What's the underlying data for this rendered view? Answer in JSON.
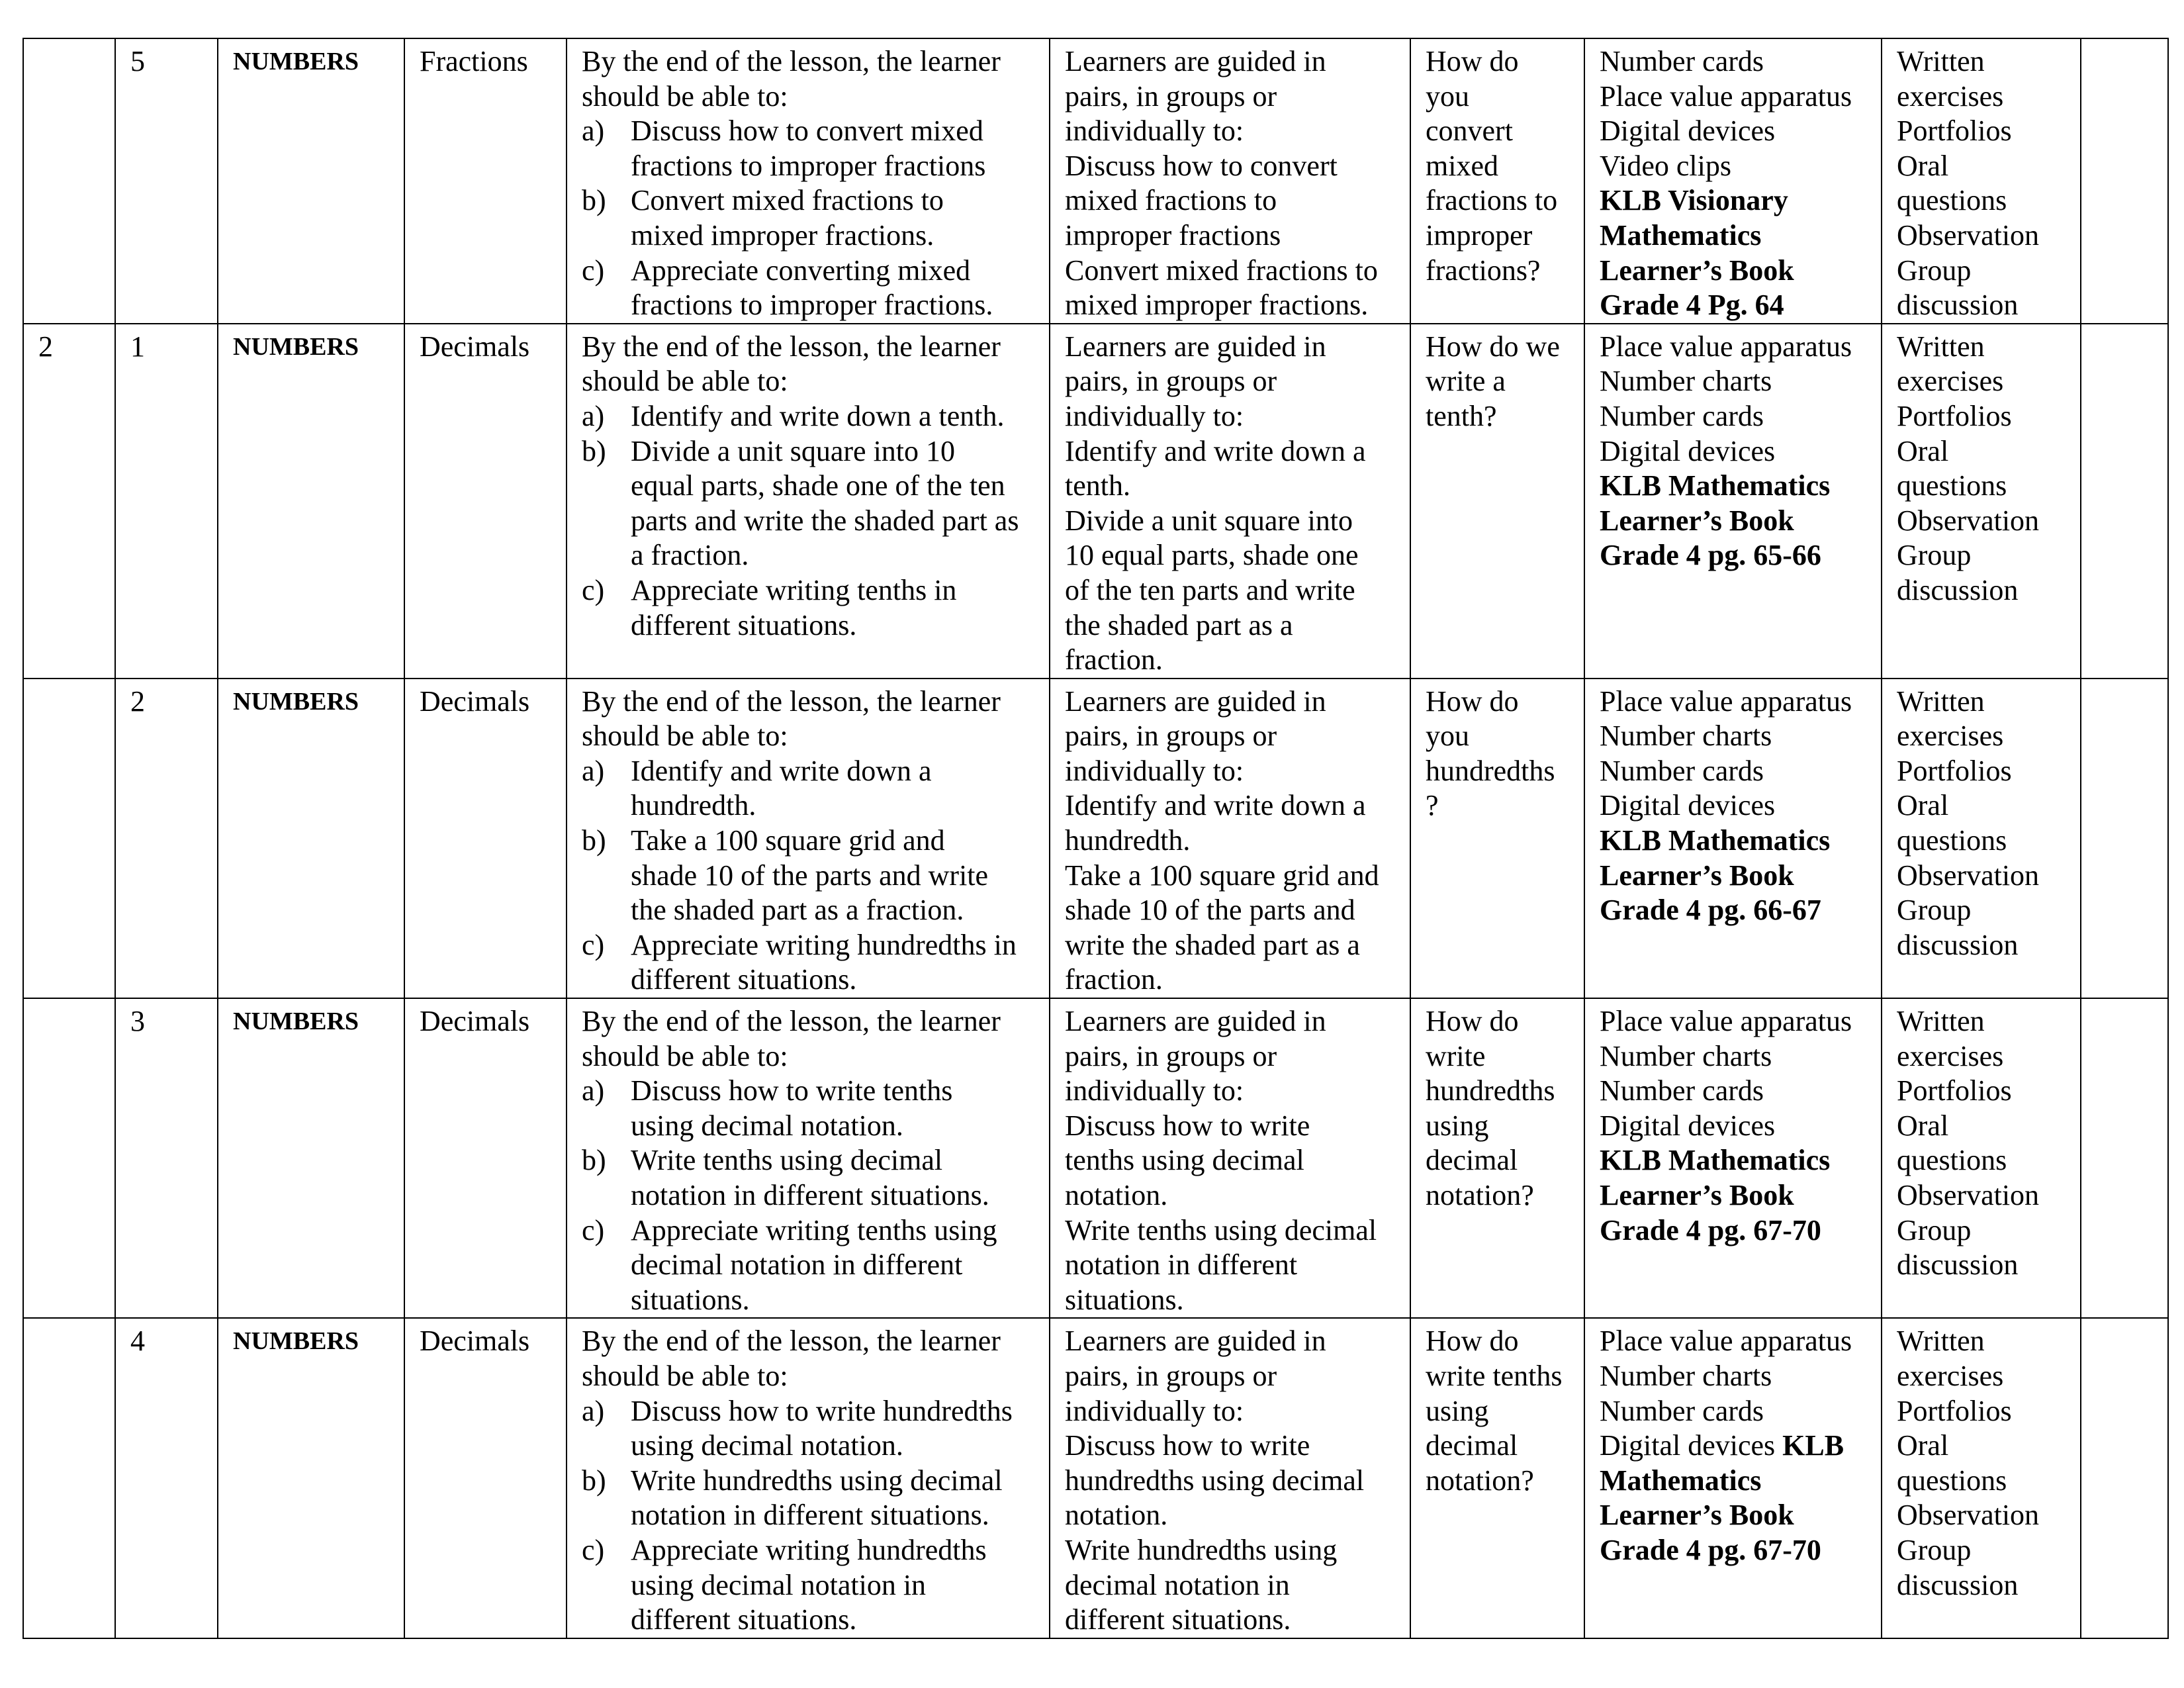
{
  "rows": [
    {
      "week": "",
      "lesson": "5",
      "strand": "NUMBERS",
      "sub_strand": "Fractions",
      "objectives": {
        "intro": [
          "By the end of the lesson, the learner",
          "should be able to:"
        ],
        "items": [
          {
            "marker": "a)",
            "lines": [
              "Discuss how to convert mixed",
              "fractions to improper fractions"
            ]
          },
          {
            "marker": "b)",
            "lines": [
              "Convert mixed fractions to",
              "mixed improper fractions."
            ]
          },
          {
            "marker": "c)",
            "lines": [
              "Appreciate converting mixed",
              "fractions to improper fractions."
            ]
          }
        ]
      },
      "activities": [
        "Learners are guided in",
        "pairs, in groups or",
        "individually to:",
        "Discuss how to convert",
        "mixed fractions to",
        "improper fractions",
        "Convert mixed fractions to",
        "mixed improper fractions."
      ],
      "inquiry": [
        "How do",
        "you",
        "convert",
        "mixed",
        "fractions to",
        "improper",
        "fractions?"
      ],
      "resources": [
        [
          {
            "text": "Number cards",
            "bold": false
          }
        ],
        [
          {
            "text": "Place value apparatus",
            "bold": false
          }
        ],
        [
          {
            "text": "Digital devices",
            "bold": false
          }
        ],
        [
          {
            "text": "Video clips",
            "bold": false
          }
        ],
        [
          {
            "text": "KLB Visionary",
            "bold": true
          }
        ],
        [
          {
            "text": "Mathematics",
            "bold": true
          }
        ],
        [
          {
            "text": "Learner’s Book",
            "bold": true
          }
        ],
        [
          {
            "text": "Grade 4 Pg. 64",
            "bold": true
          }
        ]
      ],
      "assessment": [
        "Written",
        "exercises",
        "Portfolios",
        "Oral",
        "questions",
        "Observation",
        "Group",
        "discussion"
      ],
      "remarks": ""
    },
    {
      "week": "2",
      "lesson": "1",
      "strand": "NUMBERS",
      "sub_strand": "Decimals",
      "objectives": {
        "intro": [
          "By the end of the lesson, the learner",
          "should be able to:"
        ],
        "items": [
          {
            "marker": "a)",
            "lines": [
              "Identify and write down a tenth."
            ]
          },
          {
            "marker": "b)",
            "lines": [
              "Divide a unit square into 10",
              "equal parts, shade one of the ten",
              "parts and write the shaded part as",
              "a fraction."
            ]
          },
          {
            "marker": "c)",
            "lines": [
              "Appreciate writing tenths in",
              "different situations."
            ]
          }
        ]
      },
      "activities": [
        "Learners are guided in",
        "pairs, in groups or",
        "individually to:",
        "Identify and write down a",
        "tenth.",
        "Divide a unit square into",
        "10 equal parts, shade one",
        "of the ten parts and write",
        "the shaded part as a",
        "fraction."
      ],
      "inquiry": [
        "How do we",
        "write a",
        "tenth?"
      ],
      "resources": [
        [
          {
            "text": "Place value apparatus",
            "bold": false
          }
        ],
        [
          {
            "text": "Number charts",
            "bold": false
          }
        ],
        [
          {
            "text": "Number cards",
            "bold": false
          }
        ],
        [
          {
            "text": "Digital devices",
            "bold": false
          }
        ],
        [
          {
            "text": "KLB Mathematics",
            "bold": true
          }
        ],
        [
          {
            "text": "Learner’s Book",
            "bold": true
          }
        ],
        [
          {
            "text": "Grade 4 pg. 65-66",
            "bold": true
          }
        ]
      ],
      "assessment": [
        "Written",
        "exercises",
        "Portfolios",
        "Oral",
        "questions",
        "Observation",
        "Group",
        "discussion"
      ],
      "remarks": ""
    },
    {
      "week": "",
      "lesson": "2",
      "strand": "NUMBERS",
      "sub_strand": "Decimals",
      "objectives": {
        "intro": [
          "By the end of the lesson, the learner",
          "should be able to:"
        ],
        "items": [
          {
            "marker": "a)",
            "lines": [
              "Identify and write down a",
              "hundredth."
            ]
          },
          {
            "marker": "b)",
            "lines": [
              "Take a 100 square grid and",
              "shade 10 of the parts and write",
              "the shaded part as a fraction."
            ]
          },
          {
            "marker": "c)",
            "lines": [
              "Appreciate writing hundredths in",
              "different situations."
            ]
          }
        ]
      },
      "activities": [
        "Learners are guided in",
        "pairs, in groups or",
        "individually to:",
        "Identify and write down a",
        "hundredth.",
        "Take a 100 square grid and",
        "shade 10 of the parts and",
        "write the shaded part as a",
        "fraction."
      ],
      "inquiry": [
        "How do",
        "you",
        "hundredths",
        "?"
      ],
      "resources": [
        [
          {
            "text": "Place value apparatus",
            "bold": false
          }
        ],
        [
          {
            "text": "Number charts",
            "bold": false
          }
        ],
        [
          {
            "text": "Number cards",
            "bold": false
          }
        ],
        [
          {
            "text": "Digital devices",
            "bold": false
          }
        ],
        [
          {
            "text": "KLB Mathematics",
            "bold": true
          }
        ],
        [
          {
            "text": "Learner’s Book",
            "bold": true
          }
        ],
        [
          {
            "text": "Grade 4 pg. 66-67",
            "bold": true
          }
        ]
      ],
      "assessment": [
        "Written",
        "exercises",
        "Portfolios",
        "Oral",
        "questions",
        "Observation",
        "Group",
        "discussion"
      ],
      "remarks": ""
    },
    {
      "week": "",
      "lesson": "3",
      "strand": "NUMBERS",
      "sub_strand": "Decimals",
      "objectives": {
        "intro": [
          "By the end of the lesson, the learner",
          "should be able to:"
        ],
        "items": [
          {
            "marker": "a)",
            "lines": [
              "Discuss how to write tenths",
              "using decimal notation."
            ]
          },
          {
            "marker": "b)",
            "lines": [
              "Write tenths using decimal",
              "notation in different situations."
            ]
          },
          {
            "marker": "c)",
            "lines": [
              "Appreciate writing tenths using",
              "decimal notation in different",
              "situations."
            ]
          }
        ]
      },
      "activities": [
        "Learners are guided in",
        "pairs, in groups or",
        "individually to:",
        "Discuss how to write",
        "tenths using decimal",
        "notation.",
        "Write tenths using decimal",
        "notation in different",
        "situations."
      ],
      "inquiry": [
        "How do",
        "write",
        "hundredths",
        "using",
        "decimal",
        "notation?"
      ],
      "resources": [
        [
          {
            "text": "Place value apparatus",
            "bold": false
          }
        ],
        [
          {
            "text": "Number charts",
            "bold": false
          }
        ],
        [
          {
            "text": "Number cards",
            "bold": false
          }
        ],
        [
          {
            "text": "Digital devices",
            "bold": false
          }
        ],
        [
          {
            "text": "KLB Mathematics",
            "bold": true
          }
        ],
        [
          {
            "text": "Learner’s Book",
            "bold": true
          }
        ],
        [
          {
            "text": "Grade 4 pg. 67-70",
            "bold": true
          }
        ]
      ],
      "assessment": [
        "Written",
        "exercises",
        "Portfolios",
        "Oral",
        "questions",
        "Observation",
        "Group",
        "discussion"
      ],
      "remarks": ""
    },
    {
      "week": "",
      "lesson": "4",
      "strand": "NUMBERS",
      "sub_strand": "Decimals",
      "objectives": {
        "intro": [
          "By the end of the lesson, the learner",
          "should be able to:"
        ],
        "items": [
          {
            "marker": "a)",
            "lines": [
              "Discuss how to write hundredths",
              "using decimal notation."
            ]
          },
          {
            "marker": "b)",
            "lines": [
              "Write hundredths using decimal",
              "notation in different situations."
            ]
          },
          {
            "marker": "c)",
            "lines": [
              "Appreciate writing hundredths",
              "using decimal notation in",
              "different situations."
            ]
          }
        ]
      },
      "activities": [
        "Learners are guided in",
        "pairs, in groups or",
        "individually to:",
        "Discuss how to write",
        "hundredths using decimal",
        "notation.",
        "Write hundredths using",
        "decimal notation in",
        "different situations."
      ],
      "inquiry": [
        "How do",
        "write tenths",
        "using",
        "decimal",
        "notation?"
      ],
      "resources": [
        [
          {
            "text": "Place value apparatus",
            "bold": false
          }
        ],
        [
          {
            "text": "Number charts",
            "bold": false
          }
        ],
        [
          {
            "text": "Number cards",
            "bold": false
          }
        ],
        [
          {
            "text": "Digital devices ",
            "bold": false
          },
          {
            "text": "KLB",
            "bold": true
          }
        ],
        [
          {
            "text": "Mathematics",
            "bold": true
          }
        ],
        [
          {
            "text": "Learner’s Book",
            "bold": true
          }
        ],
        [
          {
            "text": "Grade 4 pg. 67-70",
            "bold": true
          }
        ]
      ],
      "assessment": [
        "Written",
        "exercises",
        "Portfolios",
        "Oral",
        "questions",
        "Observation",
        "Group",
        "discussion"
      ],
      "remarks": ""
    }
  ]
}
